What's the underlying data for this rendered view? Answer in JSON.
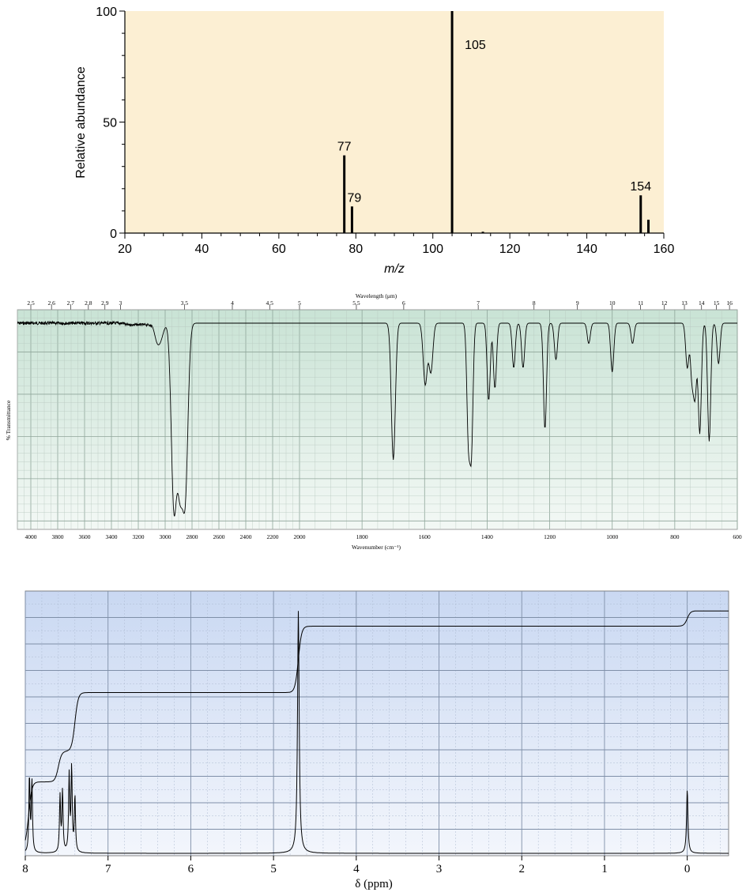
{
  "colors": {
    "ms_bg": "#fcefd3",
    "ir_bg_top": "#c9e3d5",
    "ir_bg_bottom": "#f3f8f5",
    "nmr_bg_top": "#c9d8f2",
    "nmr_bg_bottom": "#f3f6fc",
    "ink": "#000000"
  },
  "chart_data": [
    {
      "type": "bar",
      "subtype": "mass-spectrum",
      "xlabel": "m/z",
      "ylabel": "Relative abundance",
      "xlim": [
        20,
        160
      ],
      "ylim": [
        0,
        100
      ],
      "xticks": [
        20,
        40,
        60,
        80,
        100,
        120,
        140,
        160
      ],
      "yticks": [
        0,
        50,
        100
      ],
      "peaks": [
        {
          "mz": 77,
          "abundance": 35,
          "label": "77"
        },
        {
          "mz": 79,
          "abundance": 12,
          "label": "79"
        },
        {
          "mz": 105,
          "abundance": 100,
          "label": "105"
        },
        {
          "mz": 113,
          "abundance": 0.6,
          "label": ""
        },
        {
          "mz": 154,
          "abundance": 17,
          "label": "154"
        },
        {
          "mz": 156,
          "abundance": 6,
          "label": ""
        }
      ]
    },
    {
      "type": "line",
      "subtype": "ir-spectrum",
      "xlabel": "Wavenumber (cm⁻¹)",
      "x2label": "Wavelength (μm)",
      "ylabel": "% Transmittance",
      "xlim": [
        4100,
        600
      ],
      "xticks": [
        4000,
        3800,
        3600,
        3400,
        3200,
        3000,
        2800,
        2600,
        2400,
        2200,
        2000,
        1800,
        1600,
        1400,
        1200,
        1000,
        800,
        600
      ],
      "wavelength_ticks": [
        "2.5",
        "2.6",
        "2.7",
        "2.8",
        "2.9",
        "3",
        "3.5",
        "4",
        "4.5",
        "5",
        "5.5",
        "6",
        "7",
        "8",
        "9",
        "10",
        "11",
        "12",
        "13",
        "14",
        "15",
        "16"
      ],
      "bands": [
        {
          "wn": 3060,
          "depth": 8
        },
        {
          "wn": 3030,
          "depth": 6
        },
        {
          "wn": 2935,
          "depth": 88
        },
        {
          "wn": 2890,
          "depth": 72
        },
        {
          "wn": 2850,
          "depth": 80
        },
        {
          "wn": 1700,
          "depth": 67
        },
        {
          "wn": 1598,
          "depth": 30
        },
        {
          "wn": 1580,
          "depth": 24
        },
        {
          "wn": 1460,
          "depth": 55
        },
        {
          "wn": 1450,
          "depth": 60
        },
        {
          "wn": 1395,
          "depth": 38
        },
        {
          "wn": 1375,
          "depth": 32
        },
        {
          "wn": 1315,
          "depth": 22
        },
        {
          "wn": 1285,
          "depth": 22
        },
        {
          "wn": 1215,
          "depth": 52
        },
        {
          "wn": 1180,
          "depth": 18
        },
        {
          "wn": 1075,
          "depth": 10
        },
        {
          "wn": 1000,
          "depth": 24
        },
        {
          "wn": 935,
          "depth": 10
        },
        {
          "wn": 760,
          "depth": 22
        },
        {
          "wn": 745,
          "depth": 26
        },
        {
          "wn": 735,
          "depth": 34
        },
        {
          "wn": 720,
          "depth": 54
        },
        {
          "wn": 690,
          "depth": 58
        },
        {
          "wn": 660,
          "depth": 20
        }
      ]
    },
    {
      "type": "line",
      "subtype": "1H-nmr-spectrum",
      "xlabel": "δ (ppm)",
      "xlim": [
        8,
        -0.5
      ],
      "xticks": [
        "8",
        "7",
        "6",
        "5",
        "4",
        "3",
        "2",
        "1",
        "0"
      ],
      "peaks": [
        {
          "ppm": 7.95,
          "height": 0.3
        },
        {
          "ppm": 7.92,
          "height": 0.28
        },
        {
          "ppm": 7.58,
          "height": 0.22
        },
        {
          "ppm": 7.55,
          "height": 0.24
        },
        {
          "ppm": 7.47,
          "height": 0.3
        },
        {
          "ppm": 7.44,
          "height": 0.33
        },
        {
          "ppm": 7.4,
          "height": 0.22
        },
        {
          "ppm": 4.7,
          "height": 0.95
        },
        {
          "ppm": 0.0,
          "height": 0.25
        }
      ],
      "integral_levels": [
        {
          "from_ppm": 8.0,
          "level": 0.02
        },
        {
          "from_ppm": 7.96,
          "level": 0.28
        },
        {
          "from_ppm": 7.6,
          "level": 0.4
        },
        {
          "from_ppm": 7.4,
          "level": 0.63
        },
        {
          "from_ppm": 4.7,
          "level": 0.89
        },
        {
          "from_ppm": 0.0,
          "level": 0.95
        }
      ]
    }
  ]
}
